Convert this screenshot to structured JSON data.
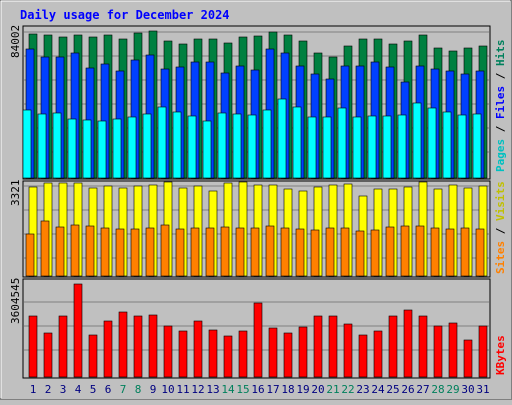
{
  "chart_data": [
    {
      "type": "bar",
      "title": "Daily usage for December 2024",
      "categories": [
        "1",
        "2",
        "3",
        "4",
        "5",
        "6",
        "7",
        "8",
        "9",
        "10",
        "11",
        "12",
        "13",
        "14",
        "15",
        "16",
        "17",
        "18",
        "19",
        "20",
        "21",
        "22",
        "23",
        "24",
        "25",
        "26",
        "27",
        "28",
        "29",
        "30",
        "31"
      ],
      "weekend_days": [
        "7",
        "8",
        "14",
        "15",
        "21",
        "22",
        "28",
        "29"
      ],
      "ylim": [
        0,
        84002
      ],
      "max_label": "84002",
      "series": [
        {
          "name": "Hits",
          "color": "#008040",
          "values": [
            80500,
            80000,
            79000,
            80000,
            79000,
            80000,
            78000,
            81000,
            82500,
            77000,
            75000,
            78000,
            78000,
            75500,
            79000,
            79500,
            82000,
            80000,
            77000,
            70000,
            67500,
            74000,
            78000,
            78000,
            75000,
            77000,
            80000,
            73000,
            71000,
            73000,
            74000
          ]
        },
        {
          "name": "Files",
          "color": "#0040FF",
          "values": [
            72000,
            68000,
            67500,
            70000,
            61500,
            64000,
            60000,
            66000,
            69000,
            61000,
            62000,
            65000,
            65000,
            59000,
            62500,
            60500,
            72000,
            70000,
            63000,
            58000,
            55500,
            62500,
            62500,
            65000,
            62000,
            54000,
            63000,
            61000,
            60000,
            58000,
            60000
          ]
        },
        {
          "name": "Pages",
          "color": "#00FFFF",
          "values": [
            38000,
            36000,
            36500,
            33000,
            32500,
            32000,
            33000,
            34000,
            36000,
            40000,
            37000,
            34500,
            32000,
            36500,
            36000,
            35500,
            38000,
            44000,
            40000,
            34000,
            34000,
            39000,
            34000,
            35000,
            35000,
            35500,
            42000,
            39000,
            37000,
            35500,
            36000
          ]
        }
      ]
    },
    {
      "type": "bar",
      "categories": [
        "1",
        "2",
        "3",
        "4",
        "5",
        "6",
        "7",
        "8",
        "9",
        "10",
        "11",
        "12",
        "13",
        "14",
        "15",
        "16",
        "17",
        "18",
        "19",
        "20",
        "21",
        "22",
        "23",
        "24",
        "25",
        "26",
        "27",
        "28",
        "29",
        "30",
        "31"
      ],
      "ylim": [
        0,
        3321
      ],
      "max_label": "3321",
      "series": [
        {
          "name": "Visits",
          "color": "#FFFF00",
          "values": [
            3150,
            3300,
            3300,
            3290,
            3100,
            3180,
            3110,
            3170,
            3200,
            3320,
            3110,
            3180,
            3010,
            3300,
            3320,
            3200,
            3210,
            3090,
            3010,
            3140,
            3230,
            3250,
            2830,
            3070,
            3090,
            3160,
            3330,
            3080,
            3230,
            3100,
            3170
          ]
        },
        {
          "name": "Sites",
          "color": "#FF8000",
          "values": [
            1500,
            1960,
            1730,
            1790,
            1760,
            1700,
            1650,
            1660,
            1700,
            1800,
            1650,
            1680,
            1710,
            1720,
            1710,
            1680,
            1760,
            1700,
            1650,
            1640,
            1700,
            1680,
            1580,
            1610,
            1720,
            1770,
            1770,
            1680,
            1660,
            1710,
            1650
          ]
        }
      ]
    },
    {
      "type": "bar",
      "categories": [
        "1",
        "2",
        "3",
        "4",
        "5",
        "6",
        "7",
        "8",
        "9",
        "10",
        "11",
        "12",
        "13",
        "14",
        "15",
        "16",
        "17",
        "18",
        "19",
        "20",
        "21",
        "22",
        "23",
        "24",
        "25",
        "26",
        "27",
        "28",
        "29",
        "30",
        "31"
      ],
      "ylim": [
        0,
        3604545
      ],
      "max_label": "3604545",
      "series": [
        {
          "name": "KBytes",
          "color": "#FF0000",
          "values": [
            2350000,
            1720000,
            2380000,
            3604545,
            1620000,
            2160000,
            2530000,
            2350000,
            2400000,
            1990000,
            1790000,
            2160000,
            1810000,
            1580000,
            1800000,
            2860000,
            1900000,
            1720000,
            1930000,
            2350000,
            2350000,
            2040000,
            1640000,
            1800000,
            2350000,
            2600000,
            2350000,
            1990000,
            2110000,
            1440000,
            1990000
          ]
        }
      ]
    }
  ],
  "panels": {
    "top_legend": {
      "a": "Pages",
      "b": "Files",
      "c": "Hits",
      "sep": " / "
    },
    "mid_legend": {
      "a": "Sites",
      "b": "Visits",
      "sep": " / "
    },
    "bot_legend": {
      "a": "KBytes"
    }
  },
  "colors": {
    "background": "#C0C0C0",
    "title": "#0000FF",
    "weekday_label": "#000080",
    "weekend_label": "#00805C",
    "max_label": "#000000",
    "grid": "#808080",
    "pages_label": "#00C0C0",
    "files_label": "#0000FF",
    "hits_label": "#00805C",
    "sites_label": "#FF8000",
    "visits_label": "#C0C000",
    "kbytes_label": "#FF0000"
  }
}
